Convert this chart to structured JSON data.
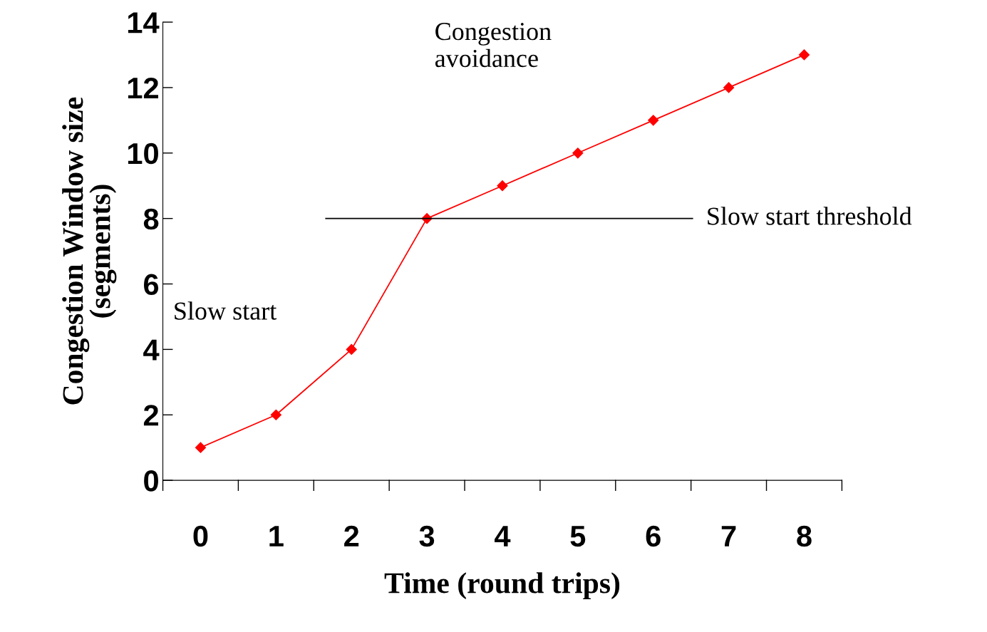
{
  "chart_data": {
    "type": "line",
    "xlabel": "Time (round trips)",
    "ylabel": "Congestion Window size\n(segments)",
    "categories": [
      "0",
      "1",
      "2",
      "3",
      "4",
      "5",
      "6",
      "7",
      "8"
    ],
    "series": [
      {
        "color": "#ff0000",
        "values": [
          1,
          2,
          4,
          8,
          9,
          10,
          11,
          12,
          13
        ]
      }
    ],
    "ylim": [
      0,
      14
    ],
    "yticks": [
      0,
      2,
      4,
      6,
      8,
      10,
      12,
      14
    ],
    "ref_lines": [
      {
        "axis": "y",
        "value": 8,
        "label": "Slow start threshold",
        "color": "#000000"
      }
    ],
    "annotations": [
      "Congestion\navoidance",
      "Slow start"
    ],
    "marker": "diamond",
    "line_style": "solid",
    "grid": false,
    "legend": false
  }
}
